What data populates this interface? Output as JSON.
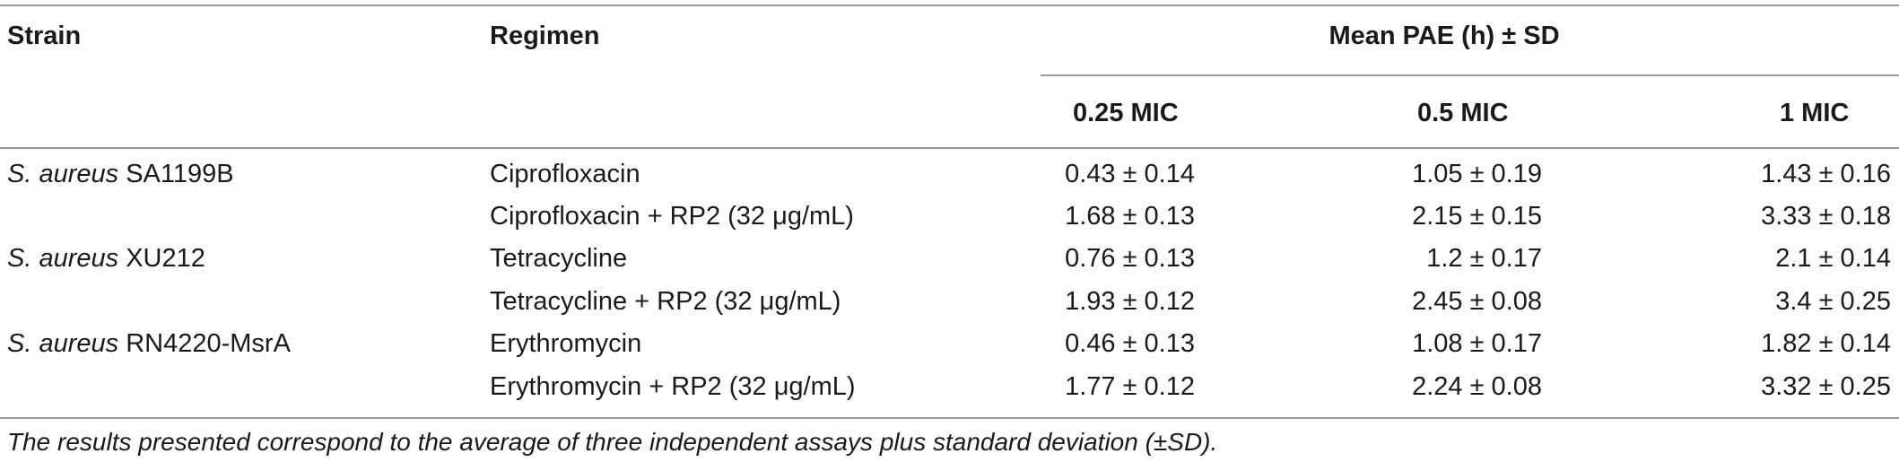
{
  "table": {
    "headers": {
      "strain": "Strain",
      "regimen": "Regimen",
      "group": "Mean PAE (h) ± SD",
      "sub": [
        "0.25 MIC",
        "0.5 MIC",
        "1 MIC"
      ]
    },
    "rows": [
      {
        "strain_species": "S. aureus",
        "strain_id": " SA1199B",
        "regimen": "Ciprofloxacin",
        "values": [
          "0.43 ± 0.14",
          "1.05 ± 0.19",
          "1.43 ± 0.16"
        ]
      },
      {
        "strain_species": "",
        "strain_id": "",
        "regimen": "Ciprofloxacin + RP2 (32 μg/mL)",
        "values": [
          "1.68 ± 0.13",
          "2.15 ± 0.15",
          "3.33 ± 0.18"
        ]
      },
      {
        "strain_species": "S. aureus",
        "strain_id": " XU212",
        "regimen": "Tetracycline",
        "values": [
          "0.76 ± 0.13",
          "1.2 ± 0.17",
          "2.1 ± 0.14"
        ]
      },
      {
        "strain_species": "",
        "strain_id": "",
        "regimen": "Tetracycline + RP2 (32 μg/mL)",
        "values": [
          "1.93 ± 0.12",
          "2.45 ± 0.08",
          "3.4 ± 0.25"
        ]
      },
      {
        "strain_species": "S. aureus",
        "strain_id": " RN4220-MsrA",
        "regimen": "Erythromycin",
        "values": [
          "0.46 ± 0.13",
          "1.08 ± 0.17",
          "1.82 ± 0.14"
        ]
      },
      {
        "strain_species": "",
        "strain_id": "",
        "regimen": "Erythromycin + RP2 (32 μg/mL)",
        "values": [
          "1.77 ± 0.12",
          "2.24 ± 0.08",
          "3.32 ± 0.25"
        ]
      }
    ],
    "footnote": "The results presented correspond to the average of three independent assays plus standard deviation (±SD)."
  }
}
